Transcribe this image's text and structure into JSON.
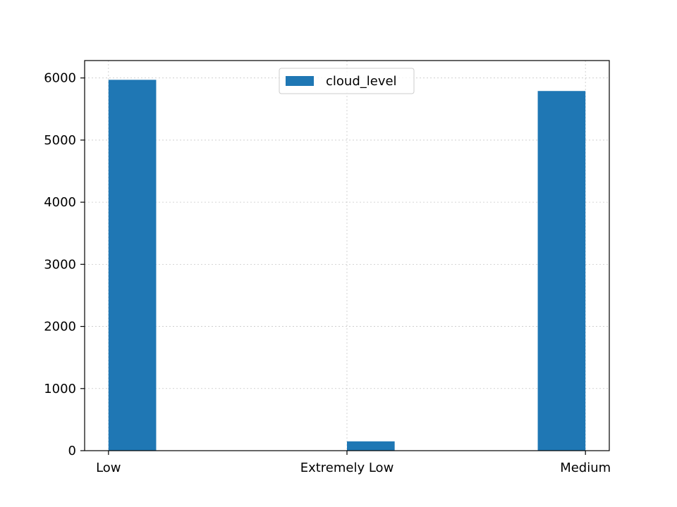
{
  "chart_data": {
    "type": "bar",
    "title": "",
    "xlabel": "",
    "ylabel": "",
    "categories": [
      "Low",
      "Extremely Low",
      "Medium"
    ],
    "x_positions": [
      0,
      1,
      2
    ],
    "xlim": [
      -0.1,
      2.1
    ],
    "ylim": [
      0,
      6280
    ],
    "yticks": [
      0,
      1000,
      2000,
      3000,
      4000,
      5000,
      6000
    ],
    "series": [
      {
        "name": "cloud_level",
        "color": "#1f77b4",
        "bars": [
          {
            "x_start": 0.0,
            "x_end": 0.2,
            "value": 5970
          },
          {
            "x_start": 1.0,
            "x_end": 1.2,
            "value": 150
          },
          {
            "x_start": 1.8,
            "x_end": 2.0,
            "value": 5790
          }
        ]
      }
    ],
    "grid": true,
    "legend": "upper-center"
  }
}
